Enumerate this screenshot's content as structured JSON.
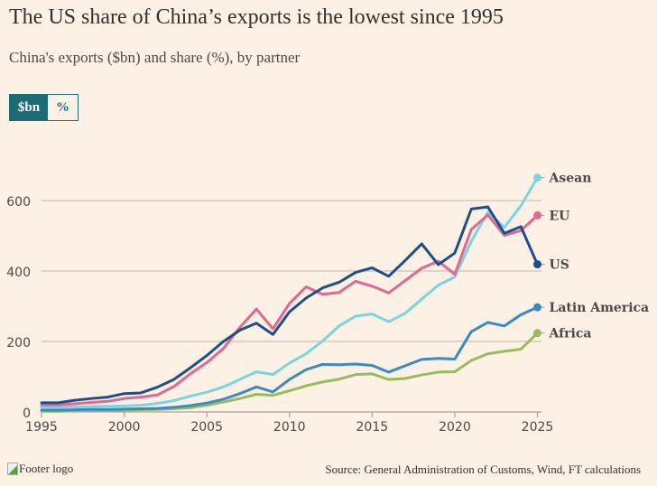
{
  "header": {
    "title": "The US share of China’s exports is the lowest since 1995",
    "subtitle": "China's exports ($bn) and share (%), by partner"
  },
  "toggle": {
    "options": [
      "$bn",
      "%"
    ],
    "selected": "$bn"
  },
  "footer": {
    "logo_alt": "Footer logo",
    "source": "Source: General Administration of Customs, Wind, FT calculations"
  },
  "chart_data": {
    "type": "line",
    "title": "The US share of China’s exports is the lowest since 1995",
    "subtitle": "China's exports ($bn) and share (%), by partner",
    "xlabel": "",
    "ylabel": "",
    "unit": "$bn",
    "x": [
      1995,
      1996,
      1997,
      1998,
      1999,
      2000,
      2001,
      2002,
      2003,
      2004,
      2005,
      2006,
      2007,
      2008,
      2009,
      2010,
      2011,
      2012,
      2013,
      2014,
      2015,
      2016,
      2017,
      2018,
      2019,
      2020,
      2021,
      2022,
      2023,
      2024,
      2025
    ],
    "xlim": [
      1995,
      2025
    ],
    "ylim": [
      0,
      700
    ],
    "x_ticks": [
      1995,
      2000,
      2005,
      2010,
      2015,
      2020,
      2025
    ],
    "y_ticks": [
      0,
      200,
      400,
      600
    ],
    "grid": "horizontal",
    "legend": "direct labels at line ends (right)",
    "series": [
      {
        "name": "Asean",
        "color": "#7ad5e0",
        "values": [
          13,
          13,
          14,
          15,
          16,
          17,
          19,
          24,
          32,
          45,
          56,
          71,
          92,
          114,
          106,
          139,
          165,
          201,
          244,
          272,
          278,
          256,
          280,
          320,
          360,
          383,
          484,
          567,
          524,
          585,
          665
        ]
      },
      {
        "name": "EU",
        "color": "#e06891",
        "values": [
          20,
          20,
          23,
          27,
          30,
          38,
          42,
          48,
          72,
          108,
          140,
          180,
          240,
          292,
          236,
          308,
          355,
          334,
          339,
          371,
          357,
          338,
          373,
          408,
          428,
          391,
          518,
          559,
          501,
          515,
          558
        ]
      },
      {
        "name": "US",
        "color": "#1f4e8c",
        "values": [
          26,
          26,
          33,
          38,
          42,
          52,
          54,
          70,
          92,
          125,
          160,
          200,
          232,
          252,
          220,
          284,
          323,
          352,
          368,
          396,
          409,
          385,
          430,
          477,
          418,
          451,
          576,
          582,
          507,
          526,
          419
        ]
      },
      {
        "name": "Latin America",
        "color": "#3b8ac8",
        "values": [
          5,
          5,
          6,
          7,
          7,
          8,
          9,
          10,
          13,
          18,
          25,
          36,
          52,
          71,
          57,
          92,
          120,
          135,
          134,
          136,
          132,
          113,
          131,
          149,
          152,
          150,
          228,
          254,
          244,
          276,
          297
        ]
      },
      {
        "name": "Africa",
        "color": "#96bd5a",
        "values": [
          2,
          2,
          3,
          4,
          4,
          5,
          6,
          7,
          9,
          12,
          19,
          28,
          38,
          50,
          47,
          60,
          74,
          85,
          93,
          106,
          108,
          92,
          95,
          105,
          113,
          114,
          146,
          165,
          172,
          178,
          224
        ]
      }
    ]
  }
}
